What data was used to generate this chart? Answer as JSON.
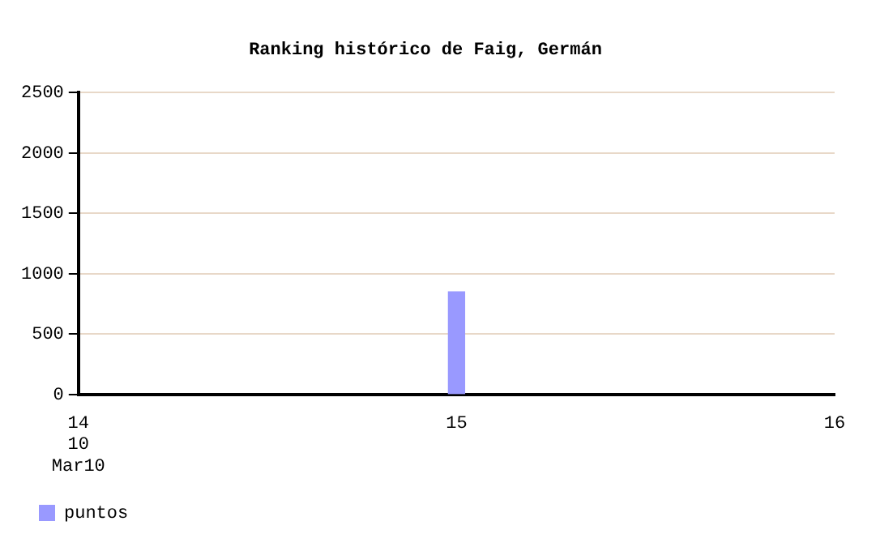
{
  "chart_data": {
    "type": "bar",
    "title": "Ranking histórico de Faig, Germán",
    "x": [
      15
    ],
    "series": [
      {
        "name": "puntos",
        "color": "#9999ff",
        "values": [
          850
        ]
      }
    ],
    "xlim": [
      14,
      16
    ],
    "xticks": [
      {
        "value": 14,
        "label": "14\n10\nMar10"
      },
      15,
      16
    ],
    "ylim": [
      0,
      2500
    ],
    "yticks": [
      0,
      500,
      1000,
      1500,
      2000,
      2500
    ],
    "grid": "y",
    "legend": "bottom left"
  }
}
